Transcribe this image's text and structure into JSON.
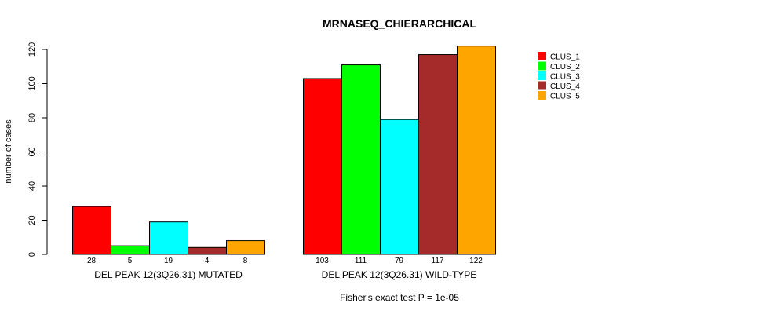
{
  "chart_data": {
    "type": "bar",
    "title": "MRNASEQ_CHIERARCHICAL",
    "ylabel": "number of cases",
    "xlabel": "",
    "subtitle": "Fisher's exact test P = 1e-05",
    "ylim": [
      0,
      125
    ],
    "yticks": [
      0,
      20,
      40,
      60,
      80,
      100,
      120
    ],
    "groups": [
      "DEL PEAK 12(3Q26.31) MUTATED",
      "DEL PEAK 12(3Q26.31) WILD-TYPE"
    ],
    "series": [
      {
        "name": "CLUS_1",
        "color": "#ff0000",
        "values": [
          28,
          103
        ]
      },
      {
        "name": "CLUS_2",
        "color": "#00ff00",
        "values": [
          5,
          111
        ]
      },
      {
        "name": "CLUS_3",
        "color": "#00ffff",
        "values": [
          19,
          79
        ]
      },
      {
        "name": "CLUS_4",
        "color": "#a52a2a",
        "values": [
          4,
          117
        ]
      },
      {
        "name": "CLUS_5",
        "color": "#ffa500",
        "values": [
          8,
          122
        ]
      }
    ],
    "legend_position": "top-right",
    "grid": false
  }
}
